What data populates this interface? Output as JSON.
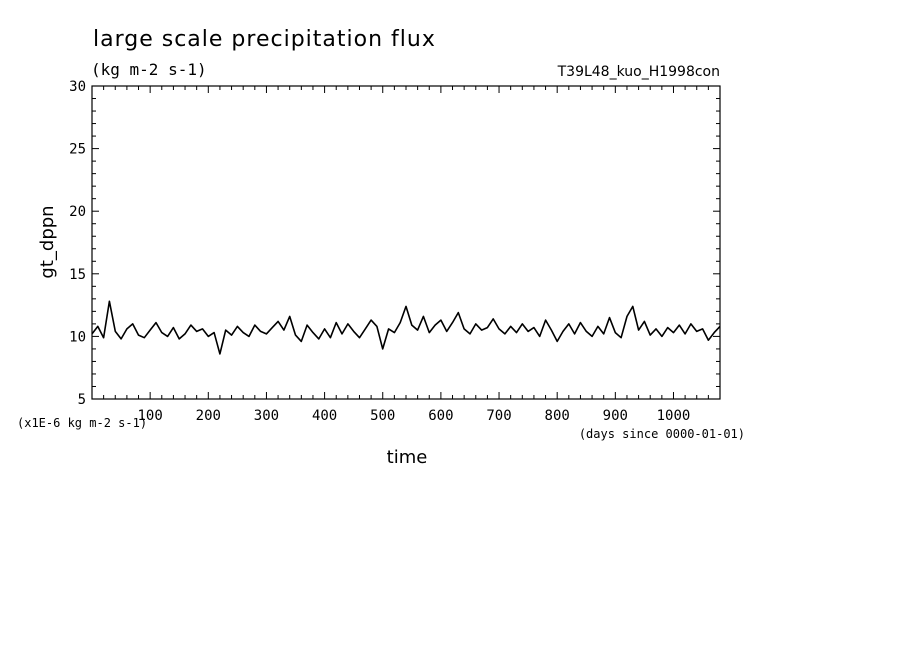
{
  "header": {
    "title": "large scale precipitation flux",
    "units": "(kg m-2 s-1)",
    "run": "T39L48_kuo_H1998con"
  },
  "axes": {
    "ylabel": "gt_dppn",
    "xlabel": "time",
    "y_scale_note": "(x1E-6 kg m-2 s-1)",
    "x_note": "(days since 0000-01-01)"
  },
  "colors": {
    "line": "#000000",
    "background": "#ffffff"
  },
  "chart_data": {
    "type": "line",
    "title": "large scale precipitation flux",
    "xlabel": "time",
    "ylabel": "gt_dppn",
    "xlim": [
      0,
      1080
    ],
    "ylim": [
      5,
      30
    ],
    "x_ticks": [
      100,
      200,
      300,
      400,
      500,
      600,
      700,
      800,
      900,
      1000
    ],
    "y_ticks": [
      5,
      10,
      15,
      20,
      25,
      30
    ],
    "grid": false,
    "series": [
      {
        "x": [
          0,
          10,
          20,
          30,
          40,
          50,
          60,
          70,
          80,
          90,
          100,
          110,
          120,
          130,
          140,
          150,
          160,
          170,
          180,
          190,
          200,
          210,
          220,
          230,
          240,
          250,
          260,
          270,
          280,
          290,
          300,
          310,
          320,
          330,
          340,
          350,
          360,
          370,
          380,
          390,
          400,
          410,
          420,
          430,
          440,
          450,
          460,
          470,
          480,
          490,
          500,
          510,
          520,
          530,
          540,
          550,
          560,
          570,
          580,
          590,
          600,
          610,
          620,
          630,
          640,
          650,
          660,
          670,
          680,
          690,
          700,
          710,
          720,
          730,
          740,
          750,
          760,
          770,
          780,
          790,
          800,
          810,
          820,
          830,
          840,
          850,
          860,
          870,
          880,
          890,
          900,
          910,
          920,
          930,
          940,
          950,
          960,
          970,
          980,
          990,
          1000,
          1010,
          1020,
          1030,
          1040,
          1050,
          1060,
          1070,
          1080
        ],
        "values": [
          10.2,
          10.8,
          9.9,
          12.8,
          10.4,
          9.8,
          10.6,
          11.0,
          10.1,
          9.9,
          10.5,
          11.1,
          10.3,
          10.0,
          10.7,
          9.8,
          10.2,
          10.9,
          10.4,
          10.6,
          10.0,
          10.3,
          8.6,
          10.5,
          10.1,
          10.8,
          10.3,
          10.0,
          10.9,
          10.4,
          10.2,
          10.7,
          11.2,
          10.5,
          11.6,
          10.1,
          9.6,
          10.9,
          10.3,
          9.8,
          10.6,
          9.9,
          11.1,
          10.2,
          11.0,
          10.4,
          9.9,
          10.6,
          11.3,
          10.8,
          9.0,
          10.6,
          10.3,
          11.1,
          12.4,
          10.9,
          10.5,
          11.6,
          10.3,
          10.9,
          11.3,
          10.4,
          11.1,
          11.9,
          10.6,
          10.2,
          11.0,
          10.5,
          10.7,
          11.4,
          10.6,
          10.2,
          10.8,
          10.3,
          11.0,
          10.4,
          10.7,
          10.0,
          11.3,
          10.5,
          9.6,
          10.4,
          11.0,
          10.2,
          11.1,
          10.4,
          10.0,
          10.8,
          10.2,
          11.5,
          10.3,
          9.9,
          11.6,
          12.4,
          10.5,
          11.2,
          10.1,
          10.6,
          10.0,
          10.7,
          10.3,
          10.9,
          10.2,
          11.0,
          10.4,
          10.6,
          9.7,
          10.3,
          10.8
        ]
      }
    ]
  }
}
